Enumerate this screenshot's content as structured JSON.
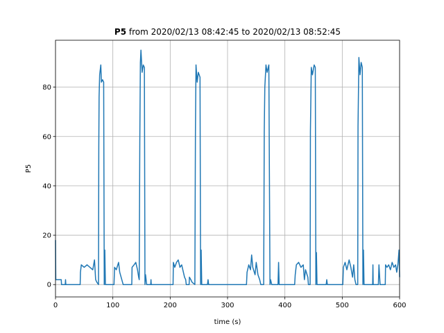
{
  "chart_data": {
    "type": "line",
    "title_bold": "P5",
    "title": "from 2020/02/13 08:42:45 to 2020/02/13 08:52:45",
    "xlabel": "time (s)",
    "ylabel": "P5",
    "xlim": [
      0,
      600
    ],
    "xticks": [
      0,
      100,
      200,
      300,
      400,
      500,
      600
    ],
    "ylim": [
      -5,
      99
    ],
    "yticks": [
      0,
      20,
      40,
      60,
      80
    ],
    "grid": true,
    "color": "#1f77b4",
    "x": [
      0,
      0.5,
      10,
      10.5,
      17,
      17.5,
      18,
      43,
      43.5,
      45,
      50,
      55,
      60,
      65,
      68,
      70,
      72,
      75,
      75.5,
      76,
      77,
      79,
      80,
      82,
      84,
      85,
      86,
      87,
      102,
      103,
      106,
      110,
      112,
      118,
      133,
      133.5,
      137,
      140,
      143,
      145,
      146,
      147,
      148,
      149,
      151,
      153,
      155,
      156,
      157,
      158,
      159,
      166,
      166.5,
      167,
      205,
      205.5,
      208,
      211,
      214,
      217,
      220,
      223,
      225,
      227,
      228,
      233,
      233.5,
      236,
      238,
      243,
      244,
      245,
      247,
      249,
      252,
      253,
      254,
      255,
      265,
      266,
      267,
      333,
      334,
      337,
      340,
      342,
      344,
      348,
      350,
      353,
      356,
      358,
      363,
      364,
      365,
      367,
      369,
      372,
      374,
      375,
      377,
      388,
      389,
      390,
      417,
      418,
      420,
      424,
      428,
      432,
      434,
      436,
      440,
      441,
      444,
      444.5,
      446,
      448,
      451,
      453,
      454,
      455,
      456,
      472,
      473,
      474,
      501,
      502,
      505,
      508,
      512,
      515,
      518,
      520,
      522,
      524,
      527,
      527.5,
      529,
      531,
      533,
      535,
      536,
      537,
      538,
      553,
      553.5,
      554,
      563,
      564,
      566,
      575,
      575.5,
      578,
      581,
      584,
      587,
      590,
      593,
      595,
      597,
      599,
      600
    ],
    "values": [
      18,
      2,
      2,
      0,
      0,
      2,
      0,
      0,
      5,
      8,
      7,
      8,
      7,
      6,
      10,
      2,
      1,
      0,
      56,
      76,
      85,
      89,
      82,
      83,
      82,
      0,
      14,
      0,
      0,
      7,
      6,
      9,
      5,
      0,
      0,
      7,
      8,
      9,
      6,
      3,
      2,
      58,
      90,
      95,
      86,
      89,
      88,
      0,
      4,
      2,
      0,
      0,
      2,
      0,
      0,
      9,
      7,
      9,
      10,
      7,
      8,
      5,
      3,
      2,
      0,
      0,
      3,
      2,
      1,
      0,
      62,
      89,
      82,
      86,
      84,
      0,
      14,
      0,
      0,
      2,
      0,
      0,
      5,
      8,
      6,
      12,
      7,
      4,
      9,
      4,
      2,
      0,
      0,
      62,
      80,
      89,
      86,
      89,
      0,
      2,
      0,
      0,
      9,
      0,
      0,
      4,
      8,
      9,
      7,
      8,
      2,
      6,
      3,
      0,
      0,
      62,
      88,
      85,
      89,
      88,
      0,
      13,
      0,
      0,
      2,
      0,
      0,
      7,
      9,
      6,
      10,
      7,
      3,
      8,
      2,
      0,
      0,
      64,
      92,
      85,
      90,
      88,
      0,
      14,
      0,
      0,
      8,
      0,
      0,
      8,
      0,
      0,
      8,
      7,
      8,
      6,
      9,
      7,
      8,
      5,
      8,
      14,
      3
    ]
  }
}
